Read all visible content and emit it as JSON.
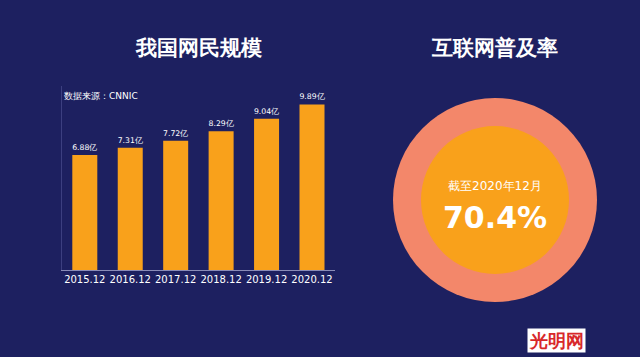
{
  "chart_data": {
    "type": "bar",
    "title": "我国网民规模",
    "subtitle": "数据来源：CNNIC",
    "categories": [
      "2015.12",
      "2016.12",
      "2017.12",
      "2018.12",
      "2019.12",
      "2020.12"
    ],
    "values": [
      6.88,
      7.31,
      7.72,
      8.29,
      9.04,
      9.89
    ],
    "value_labels": [
      "6.88亿",
      "7.31亿",
      "7.72亿",
      "8.29亿",
      "9.04亿",
      "9.89亿"
    ],
    "color": "#f9a11b",
    "ylim": [
      0,
      11
    ],
    "yticks": [],
    "grid": false,
    "data_labels": true,
    "tick_labels": "x"
  },
  "panel": {
    "title": "互联网普及率",
    "caption": "截至2020年12月",
    "value": 70.4,
    "value_label": "70.4%"
  },
  "logo": "光明网"
}
